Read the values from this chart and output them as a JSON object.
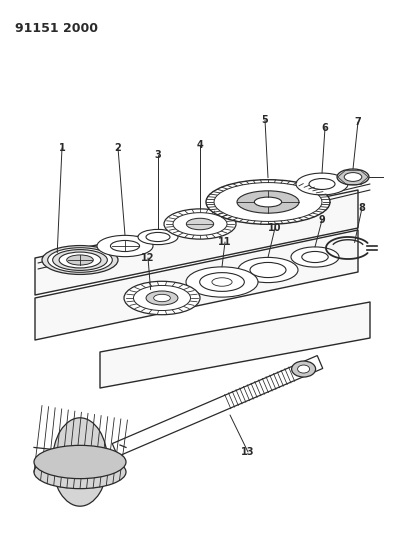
{
  "title": "91151 2000",
  "bg_color": "#FFFFFF",
  "line_color": "#2A2A2A",
  "title_fontsize": 9,
  "label_fontsize": 7,
  "fig_w": 3.96,
  "fig_h": 5.33,
  "dpi": 100
}
